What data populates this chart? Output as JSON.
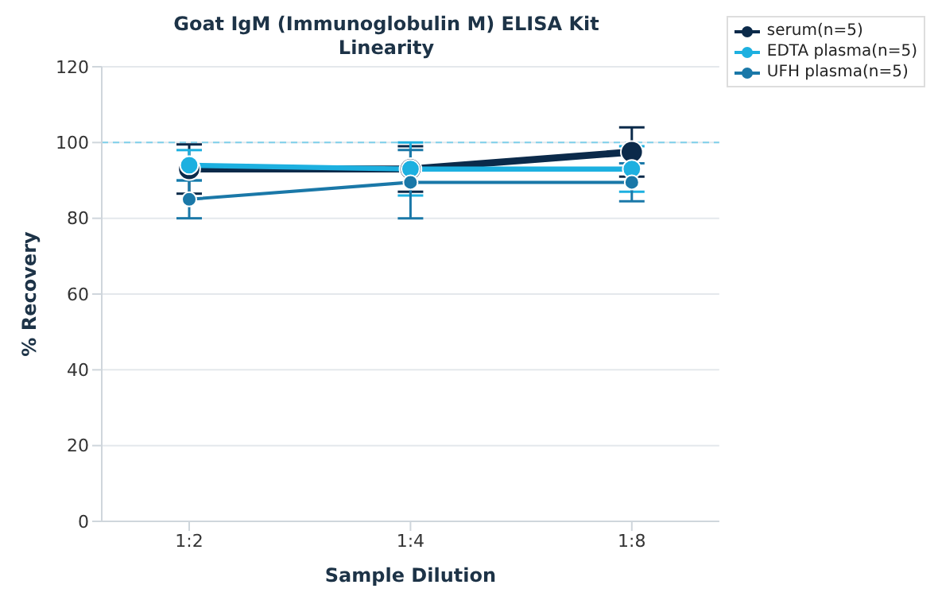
{
  "chart_data": {
    "type": "line",
    "title": "Goat IgM (Immunoglobulin M) ELISA Kit\nLinearity",
    "xlabel": "Sample Dilution",
    "ylabel": "% Recovery",
    "categories": [
      "1:2",
      "1:4",
      "1:8"
    ],
    "series": [
      {
        "name": "serum(n=5)",
        "color": "#0b2a4a",
        "values": [
          93,
          93,
          97.5
        ],
        "errors": [
          6.5,
          6,
          6.5
        ]
      },
      {
        "name": "EDTA plasma(n=5)",
        "color": "#1db0e0",
        "values": [
          94,
          93,
          93
        ],
        "errors": [
          4,
          7,
          6
        ]
      },
      {
        "name": "UFH plasma(n=5)",
        "color": "#1a78a8",
        "values": [
          85,
          89.5,
          89.5
        ],
        "errors": [
          5,
          [
            80,
            98
          ],
          5
        ]
      }
    ],
    "ylim": [
      0,
      120
    ],
    "yticks": [
      0,
      20,
      40,
      60,
      80,
      100,
      120
    ],
    "grid": "y",
    "legend": "top right",
    "marker": "circle",
    "line_style": "solid",
    "ref_lines": [
      {
        "axis": "y",
        "value": 100,
        "color": "#7fd0ea",
        "line_style": "dashed"
      }
    ]
  }
}
